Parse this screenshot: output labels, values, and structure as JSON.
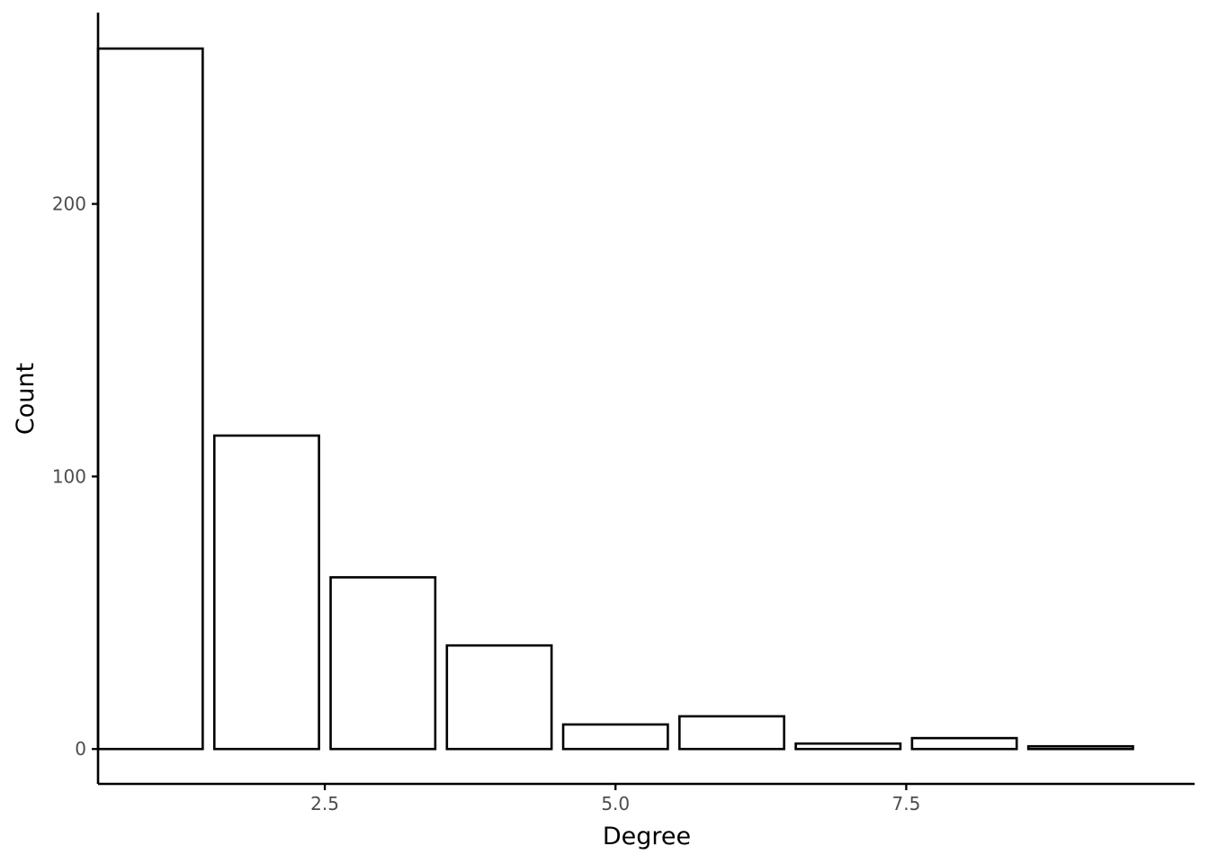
{
  "chart_data": {
    "type": "bar",
    "xlabel": "Degree",
    "ylabel": "Count",
    "x": [
      1,
      2,
      3,
      4,
      5,
      6,
      7,
      8,
      9
    ],
    "values": [
      257,
      115,
      63,
      38,
      9,
      12,
      2,
      4,
      1
    ],
    "xlim": [
      0.55,
      9.98
    ],
    "ylim": [
      -12.8,
      270.2
    ],
    "xticks": [
      2.5,
      5.0,
      7.5
    ],
    "xtick_labels": [
      "2.5",
      "5.0",
      "7.5"
    ],
    "yticks": [
      0,
      100,
      200
    ],
    "ytick_labels": [
      "0",
      "100",
      "200"
    ],
    "bar_width": 0.9,
    "grid": false,
    "legend": "none",
    "colors": {
      "bar_fill": "#ffffff",
      "bar_stroke": "#000000",
      "tick_text": "#4d4d4d"
    }
  }
}
